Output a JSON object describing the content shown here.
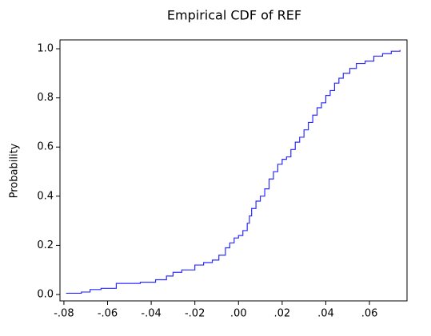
{
  "chart_data": {
    "type": "line",
    "drawstyle": "steps-post",
    "title": "Empirical CDF of REF",
    "ylabel": "Probability",
    "x": [
      -0.079,
      -0.072,
      -0.068,
      -0.063,
      -0.056,
      -0.045,
      -0.038,
      -0.033,
      -0.03,
      -0.026,
      -0.02,
      -0.016,
      -0.012,
      -0.009,
      -0.006,
      -0.004,
      -0.002,
      0.0,
      0.002,
      0.004,
      0.005,
      0.006,
      0.008,
      0.01,
      0.012,
      0.014,
      0.016,
      0.018,
      0.02,
      0.022,
      0.024,
      0.026,
      0.028,
      0.03,
      0.032,
      0.034,
      0.036,
      0.038,
      0.04,
      0.042,
      0.044,
      0.046,
      0.048,
      0.051,
      0.054,
      0.058,
      0.062,
      0.066,
      0.07,
      0.074
    ],
    "series": [
      {
        "color": "#2b2bff",
        "values": [
          0.005,
          0.01,
          0.02,
          0.025,
          0.045,
          0.05,
          0.06,
          0.075,
          0.09,
          0.1,
          0.12,
          0.13,
          0.14,
          0.16,
          0.19,
          0.21,
          0.23,
          0.24,
          0.26,
          0.29,
          0.32,
          0.35,
          0.38,
          0.4,
          0.43,
          0.47,
          0.5,
          0.53,
          0.55,
          0.56,
          0.59,
          0.62,
          0.64,
          0.67,
          0.7,
          0.73,
          0.76,
          0.78,
          0.81,
          0.83,
          0.86,
          0.88,
          0.9,
          0.92,
          0.94,
          0.95,
          0.97,
          0.98,
          0.99,
          0.995
        ]
      }
    ],
    "xlim": [
      -0.0818,
      0.0772
    ],
    "ylim": [
      -0.026,
      1.036
    ],
    "xticks": [
      {
        "value": -0.08,
        "label": "-.08"
      },
      {
        "value": -0.06,
        "label": "-.06"
      },
      {
        "value": -0.04,
        "label": "-.04"
      },
      {
        "value": -0.02,
        "label": "-.02"
      },
      {
        "value": 0,
        "label": ".00"
      },
      {
        "value": 0.02,
        "label": ".02"
      },
      {
        "value": 0.04,
        "label": ".04"
      },
      {
        "value": 0.06,
        "label": ".06"
      }
    ],
    "yticks": [
      {
        "value": 0,
        "label": "0.0"
      },
      0.2,
      0.4,
      0.6,
      0.8,
      {
        "value": 1,
        "label": "1.0"
      }
    ],
    "grid": false
  }
}
